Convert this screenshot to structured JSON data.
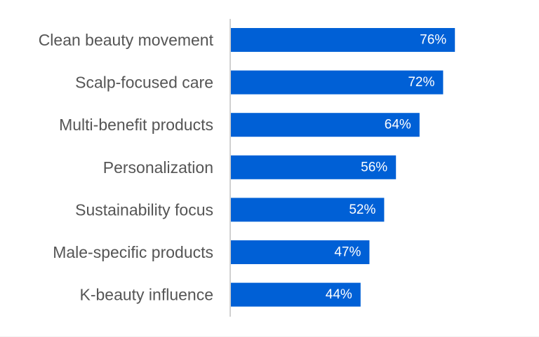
{
  "colors": {
    "bar": "#0060d6",
    "bar_label": "#ffffff",
    "category_label": "#555555",
    "axis_line": "#d0d0d0"
  },
  "chart_data": {
    "type": "bar",
    "orientation": "horizontal",
    "categories": [
      "Clean beauty movement",
      "Scalp-focused care",
      "Multi-benefit products",
      "Personalization",
      "Sustainability focus",
      "Male-specific products",
      "K-beauty influence"
    ],
    "values": [
      76,
      72,
      64,
      56,
      52,
      47,
      44
    ],
    "value_labels": [
      "76%",
      "72%",
      "64%",
      "56%",
      "52%",
      "47%",
      "44%"
    ],
    "title": "",
    "xlabel": "",
    "ylabel": "",
    "xlim": [
      0,
      100
    ],
    "grid": false,
    "legend": "none"
  }
}
